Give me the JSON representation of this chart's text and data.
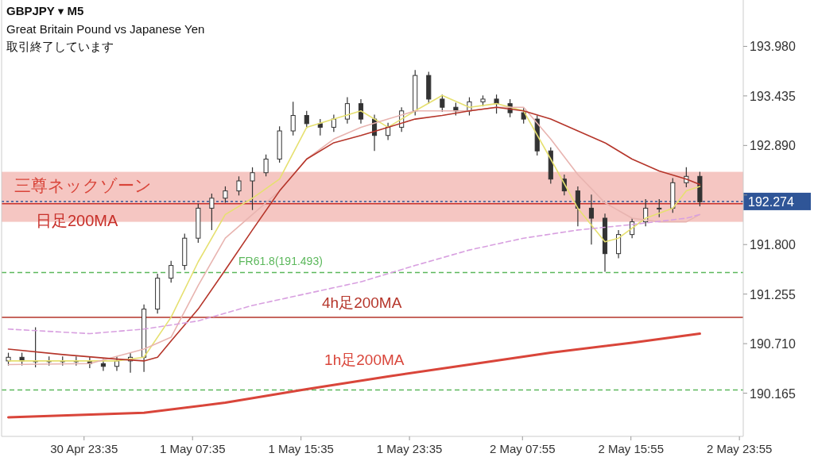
{
  "chart_data": {
    "type": "candlestick",
    "title": "GBPJPY ▾ M5",
    "subtitle": "Great Britain Pound vs Japanese Yen",
    "annotations": [
      "取引終了しています"
    ],
    "color": "#333333",
    "x": [
      "--04-30T18:00",
      "--04-30T19:00",
      "--04-30T20:00",
      "--04-30T21:00",
      "--04-30T22:00",
      "--04-30T23:00",
      "--05-01T00:00",
      "--05-01T01:00",
      "--05-01T02:00",
      "--05-01T03:00",
      "--05-01T04:00",
      "--05-01T05:00",
      "--05-01T06:00",
      "--05-01T07:00",
      "--05-01T08:00",
      "--05-01T09:00",
      "--05-01T10:00",
      "--05-01T11:00",
      "--05-01T12:00",
      "--05-01T13:00",
      "--05-01T14:00",
      "--05-01T15:00",
      "--05-01T16:00",
      "--05-01T17:00",
      "--05-01T18:00",
      "--05-01T19:00",
      "--05-01T20:00",
      "--05-01T21:00",
      "--05-01T22:00",
      "--05-01T23:00",
      "--05-02T00:00",
      "--05-02T01:00",
      "--05-02T02:00",
      "--05-02T03:00",
      "--05-02T04:00",
      "--05-02T05:00",
      "--05-02T06:00",
      "--05-02T07:00",
      "--05-02T08:00",
      "--05-02T09:00",
      "--05-02T10:00",
      "--05-02T11:00",
      "--05-02T12:00",
      "--05-02T13:00",
      "--05-02T14:00",
      "--05-02T15:00",
      "--05-02T16:00",
      "--05-02T17:00",
      "--05-02T18:00",
      "--05-02T19:00",
      "--05-02T20:00",
      "--05-02T21:00"
    ],
    "ohlc": [
      [
        190.52,
        190.61,
        190.47,
        190.56
      ],
      [
        190.56,
        190.61,
        190.47,
        190.52
      ],
      [
        190.52,
        190.89,
        190.45,
        190.52
      ],
      [
        190.52,
        190.57,
        190.47,
        190.52
      ],
      [
        190.52,
        190.57,
        190.47,
        190.52
      ],
      [
        190.52,
        190.57,
        190.47,
        190.52
      ],
      [
        190.52,
        190.57,
        190.44,
        190.49
      ],
      [
        190.49,
        190.54,
        190.41,
        190.46
      ],
      [
        190.46,
        190.57,
        190.41,
        190.52
      ],
      [
        190.52,
        190.61,
        190.39,
        190.56
      ],
      [
        190.56,
        191.14,
        190.4,
        191.09
      ],
      [
        191.09,
        191.48,
        191.04,
        191.43
      ],
      [
        191.43,
        191.62,
        191.38,
        191.57
      ],
      [
        191.57,
        191.92,
        191.52,
        191.87
      ],
      [
        191.87,
        192.25,
        191.82,
        192.2
      ],
      [
        192.2,
        192.36,
        191.96,
        192.31
      ],
      [
        192.31,
        192.44,
        192.26,
        192.39
      ],
      [
        192.39,
        192.55,
        192.34,
        192.5
      ],
      [
        192.5,
        192.65,
        192.18,
        192.59
      ],
      [
        192.59,
        192.79,
        192.55,
        192.74
      ],
      [
        192.74,
        193.1,
        192.7,
        193.05
      ],
      [
        193.05,
        193.37,
        193.0,
        193.22
      ],
      [
        193.22,
        193.27,
        193.08,
        193.13
      ],
      [
        193.13,
        193.18,
        193.0,
        193.09
      ],
      [
        193.09,
        193.23,
        193.04,
        193.18
      ],
      [
        193.18,
        193.42,
        193.13,
        193.35
      ],
      [
        193.35,
        193.4,
        193.13,
        193.18
      ],
      [
        193.18,
        193.23,
        192.83,
        193.0
      ],
      [
        193.0,
        193.14,
        192.95,
        193.09
      ],
      [
        193.09,
        193.31,
        193.04,
        193.27
      ],
      [
        193.27,
        193.72,
        193.22,
        193.66
      ],
      [
        193.66,
        193.7,
        193.35,
        193.4
      ],
      [
        193.4,
        193.45,
        193.26,
        193.31
      ],
      [
        193.31,
        193.36,
        193.22,
        193.27
      ],
      [
        193.27,
        193.42,
        193.22,
        193.37
      ],
      [
        193.37,
        193.44,
        193.32,
        193.4
      ],
      [
        193.4,
        193.45,
        193.24,
        193.35
      ],
      [
        193.35,
        193.4,
        193.2,
        193.25
      ],
      [
        193.25,
        193.3,
        193.13,
        193.18
      ],
      [
        193.18,
        193.22,
        192.78,
        192.83
      ],
      [
        192.83,
        192.87,
        192.47,
        192.52
      ],
      [
        192.52,
        192.57,
        192.34,
        192.39
      ],
      [
        192.39,
        192.44,
        192.0,
        192.2
      ],
      [
        192.2,
        192.35,
        191.8,
        192.09
      ],
      [
        192.09,
        192.14,
        191.5,
        191.7
      ],
      [
        191.7,
        191.96,
        191.65,
        191.91
      ],
      [
        191.91,
        192.09,
        191.87,
        192.05
      ],
      [
        192.05,
        192.3,
        192.0,
        192.2
      ],
      [
        192.2,
        192.3,
        192.1,
        192.2
      ],
      [
        192.2,
        192.53,
        192.15,
        192.48
      ],
      [
        192.48,
        192.65,
        192.43,
        192.55
      ],
      [
        192.55,
        192.6,
        192.22,
        192.27
      ]
    ],
    "series": [
      {
        "type": "line",
        "color": "#e6e070",
        "x": [
          "--04-30T18:00",
          "--04-30T22:00",
          "--05-01T02:00",
          "--05-01T04:00",
          "--05-01T06:00",
          "--05-01T08:00",
          "--05-01T10:00",
          "--05-01T12:00",
          "--05-01T14:00",
          "--05-01T16:00",
          "--05-01T18:00",
          "--05-01T20:00",
          "--05-01T22:00",
          "--05-02T00:00",
          "--05-02T02:00",
          "--05-02T04:00",
          "--05-02T06:00",
          "--05-02T08:00",
          "--05-02T10:00",
          "--05-02T12:00",
          "--05-02T14:00",
          "--05-02T15:00",
          "--05-02T17:00",
          "--05-02T19:00",
          "--05-02T20:00",
          "--05-02T21:00"
        ],
        "values": [
          190.52,
          190.52,
          190.52,
          190.56,
          191.0,
          191.61,
          192.13,
          192.31,
          192.52,
          193.09,
          193.18,
          193.27,
          193.09,
          193.27,
          193.44,
          193.31,
          193.35,
          193.27,
          192.74,
          192.2,
          191.83,
          191.87,
          192.09,
          192.2,
          192.39,
          192.44
        ]
      },
      {
        "type": "line",
        "color": "#e8b4b0",
        "x": [
          "--04-30T18:00",
          "--05-01T00:00",
          "--05-01T04:00",
          "--05-01T06:00",
          "--05-01T08:00",
          "--05-01T10:00",
          "--05-01T12:00",
          "--05-01T14:00",
          "--05-01T16:00",
          "--05-01T18:00",
          "--05-01T20:00",
          "--05-01T22:00",
          "--05-02T00:00",
          "--05-02T02:00",
          "--05-02T04:00",
          "--05-02T06:00",
          "--05-02T08:00",
          "--05-02T10:00",
          "--05-02T12:00",
          "--05-02T14:00",
          "--05-02T16:00",
          "--05-02T18:00",
          "--05-02T20:00",
          "--05-02T21:00"
        ],
        "values": [
          190.48,
          190.49,
          190.65,
          190.78,
          191.35,
          191.87,
          192.13,
          192.39,
          192.74,
          192.96,
          193.09,
          193.18,
          193.27,
          193.27,
          193.27,
          193.31,
          193.31,
          192.96,
          192.57,
          192.26,
          192.09,
          192.05,
          192.05,
          192.13
        ]
      },
      {
        "type": "line",
        "color": "#b5352a",
        "x": [
          "--04-30T18:00",
          "--04-30T22:00",
          "--05-01T02:00",
          "--05-01T04:00",
          "--05-01T05:00",
          "--05-01T06:00",
          "--05-01T08:00",
          "--05-01T10:00",
          "--05-01T12:00",
          "--05-01T14:00",
          "--05-01T16:00",
          "--05-01T18:00",
          "--05-01T20:00",
          "--05-01T22:00",
          "--05-02T00:00",
          "--05-02T02:00",
          "--05-02T04:00",
          "--05-02T06:00",
          "--05-02T08:00",
          "--05-02T10:00",
          "--05-02T12:00",
          "--05-02T14:00",
          "--05-02T16:00",
          "--05-02T18:00",
          "--05-02T20:00",
          "--05-02T21:00"
        ],
        "values": [
          190.65,
          190.59,
          190.54,
          190.52,
          190.56,
          190.74,
          191.09,
          191.52,
          191.96,
          192.39,
          192.74,
          192.92,
          193.0,
          193.09,
          193.18,
          193.22,
          193.27,
          193.31,
          193.27,
          193.18,
          193.05,
          192.92,
          192.74,
          192.61,
          192.52,
          192.46
        ]
      },
      {
        "type": "line",
        "color": "#d8a0e0",
        "line_style": "dashed",
        "x": [
          "--04-30T18:00",
          "--05-01T00:00",
          "--05-01T04:00",
          "--05-01T08:00",
          "--05-01T12:00",
          "--05-01T16:00",
          "--05-01T20:00",
          "--05-02T00:00",
          "--05-02T04:00",
          "--05-02T08:00",
          "--05-02T12:00",
          "--05-02T16:00",
          "--05-02T20:00",
          "--05-02T21:00"
        ],
        "values": [
          190.87,
          190.82,
          190.87,
          190.96,
          191.13,
          191.26,
          191.39,
          191.57,
          191.74,
          191.87,
          191.96,
          192.02,
          192.09,
          192.13
        ]
      },
      {
        "type": "line",
        "name": "1h足200MA",
        "color": "#d9453a",
        "x": [
          "--04-30T18:00",
          "--05-01T04:00",
          "--05-01T10:00",
          "--05-01T16:00",
          "--05-01T22:00",
          "--05-02T04:00",
          "--05-02T10:00",
          "--05-02T16:00",
          "--05-02T21:00"
        ],
        "values": [
          189.9,
          189.95,
          190.06,
          190.21,
          190.35,
          190.48,
          190.61,
          190.72,
          190.82
        ]
      }
    ],
    "ref_lines": [
      {
        "axis": "y",
        "value": 192.25,
        "label": "日足200MA",
        "color": "#c8302a"
      },
      {
        "axis": "y",
        "value": 192.274,
        "label": "192.274",
        "color": "#2f5597",
        "line_style": "dotted"
      },
      {
        "axis": "y",
        "value": 191.493,
        "label": "FR61.8(191.493)",
        "color": "#5cb85c",
        "line_style": "dashed"
      },
      {
        "axis": "y",
        "value": 191.0,
        "label": "4h足200MA",
        "color": "#b5352a"
      },
      {
        "axis": "y",
        "value": 190.2,
        "color": "#5cb85c",
        "line_style": "dashed"
      }
    ],
    "bands": [
      {
        "axis": "y",
        "from": 192.05,
        "to": 192.6,
        "label": "三尊ネックゾーン",
        "color": "#f5c6c2"
      }
    ],
    "xlim": [
      "--04-30T17:30",
      "--05-03T00:12"
    ],
    "ylim": [
      189.69,
      194.49
    ],
    "xticks": [
      {
        "value": "--04-30T23:35",
        "label": "30 Apr 23:35"
      },
      {
        "value": "--05-01T07:35",
        "label": "1 May 07:35"
      },
      {
        "value": "--05-01T15:35",
        "label": "1 May 15:35"
      },
      {
        "value": "--05-01T23:35",
        "label": "1 May 23:35"
      },
      {
        "value": "--05-02T07:55",
        "label": "2 May 07:55"
      },
      {
        "value": "--05-02T15:55",
        "label": "2 May 15:55"
      },
      {
        "value": "--05-02T23:55",
        "label": "2 May 23:55"
      }
    ],
    "yticks": [
      {
        "value": 190.165,
        "label": "190.165"
      },
      {
        "value": 190.71,
        "label": "190.710"
      },
      {
        "value": 191.255,
        "label": "191.255"
      },
      {
        "value": 191.8,
        "label": "191.800"
      },
      {
        "value": 192.345,
        "label": null
      },
      {
        "value": 192.89,
        "label": "192.890"
      },
      {
        "value": 193.435,
        "label": "193.435"
      },
      {
        "value": 193.98,
        "label": "193.980"
      }
    ]
  }
}
